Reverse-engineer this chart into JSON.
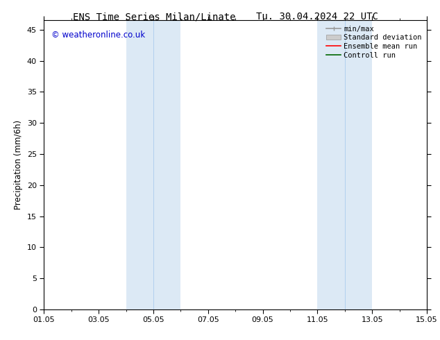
{
  "title_left": "ENS Time Series Milan/Linate",
  "title_right": "Tu. 30.04.2024 22 UTC",
  "ylabel": "Precipitation (mm/6h)",
  "xlabel": "",
  "ylim": [
    0,
    46.5
  ],
  "yticks": [
    0,
    5,
    10,
    15,
    20,
    25,
    30,
    35,
    40,
    45
  ],
  "xtick_labels": [
    "01.05",
    "03.05",
    "05.05",
    "07.05",
    "09.05",
    "11.05",
    "13.05",
    "15.05"
  ],
  "xtick_positions": [
    0,
    2,
    4,
    6,
    8,
    10,
    12,
    14
  ],
  "xlim": [
    0,
    14
  ],
  "background_color": "#ffffff",
  "plot_bg_color": "#ffffff",
  "shaded_regions": [
    {
      "xmin": 3.0,
      "xmax": 5.0,
      "color": "#dce9f5"
    },
    {
      "xmin": 10.0,
      "xmax": 12.0,
      "color": "#dce9f5"
    }
  ],
  "divider_lines": [
    4.0,
    11.0
  ],
  "watermark_text": "© weatheronline.co.uk",
  "watermark_color": "#0000cc",
  "legend_entries": [
    {
      "label": "min/max",
      "color": "#999999",
      "lw": 1.2,
      "type": "line_with_caps"
    },
    {
      "label": "Standard deviation",
      "color": "#cccccc",
      "lw": 8,
      "type": "thick_line"
    },
    {
      "label": "Ensemble mean run",
      "color": "#ff0000",
      "lw": 1.2,
      "type": "line"
    },
    {
      "label": "Controll run",
      "color": "#006600",
      "lw": 1.2,
      "type": "line"
    }
  ],
  "title_fontsize": 10,
  "tick_fontsize": 8,
  "ylabel_fontsize": 8.5,
  "watermark_fontsize": 8.5,
  "legend_fontsize": 7.5
}
